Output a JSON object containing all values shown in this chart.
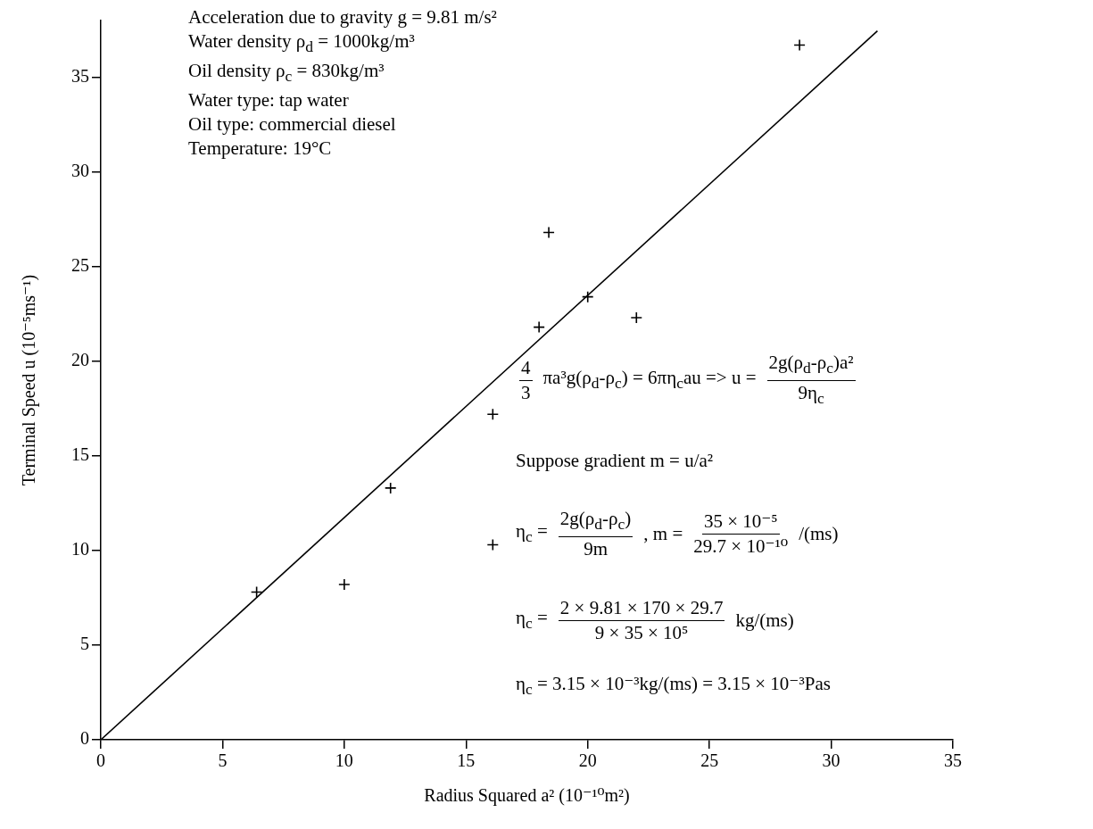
{
  "chart_data": {
    "type": "scatter",
    "xlabel": "Radius Squared a² (10⁻¹⁰m²)",
    "ylabel": "Terminal Speed u (10⁻⁵ms⁻¹)",
    "xlim": [
      0,
      35
    ],
    "ylim": [
      0,
      38
    ],
    "xticks": [
      0,
      5,
      10,
      15,
      20,
      25,
      30,
      35
    ],
    "yticks": [
      0,
      5,
      10,
      15,
      20,
      25,
      30,
      35
    ],
    "series": [
      {
        "marker": "cross",
        "color": "#000000",
        "x": [
          6.4,
          10,
          11.9,
          16.1,
          16.1,
          18,
          18.4,
          20,
          22,
          28.7
        ],
        "values": [
          7.8,
          8.2,
          13.3,
          10.3,
          17.2,
          21.8,
          26.8,
          23.4,
          22.3,
          36.7
        ]
      },
      {
        "type": "line",
        "color": "#000000",
        "line_style": "solid",
        "x": [
          0,
          31.9
        ],
        "values": [
          0,
          37.45
        ]
      }
    ],
    "annotations": [
      "Acceleration due to gravity g = 9.81 m/s²",
      "Water density ρ$_{d}$ = 1000kg/m³",
      "Oil density ρ$_{c}$ = 830kg/m³",
      "Water type: tap water",
      "Oil type: commercial diesel",
      "Temperature: 19°C",
      "4",
      "3",
      "πa³g(ρ$_{d}$-ρ$_{c}$) = 6πη$_{c}$au => u =",
      "2g(ρ$_{d}$-ρ$_{c}$)a²",
      "9η$_{c}$",
      "Suppose gradient m = u/a²",
      "η$_{c}$ =",
      "2g(ρ$_{d}$-ρ$_{c}$)",
      "9m",
      ", m =",
      "35 × 10⁻⁵",
      "29.7 × 10⁻¹⁰",
      "/(ms)",
      "η$_{c}$ =",
      "2 × 9.81 × 170 × 29.7",
      "9 × 35 × 10⁵",
      "kg/(ms)",
      "η$_{c}$ = 3.15 × 10⁻³kg/(ms) = 3.15 × 10⁻³Pas"
    ]
  }
}
